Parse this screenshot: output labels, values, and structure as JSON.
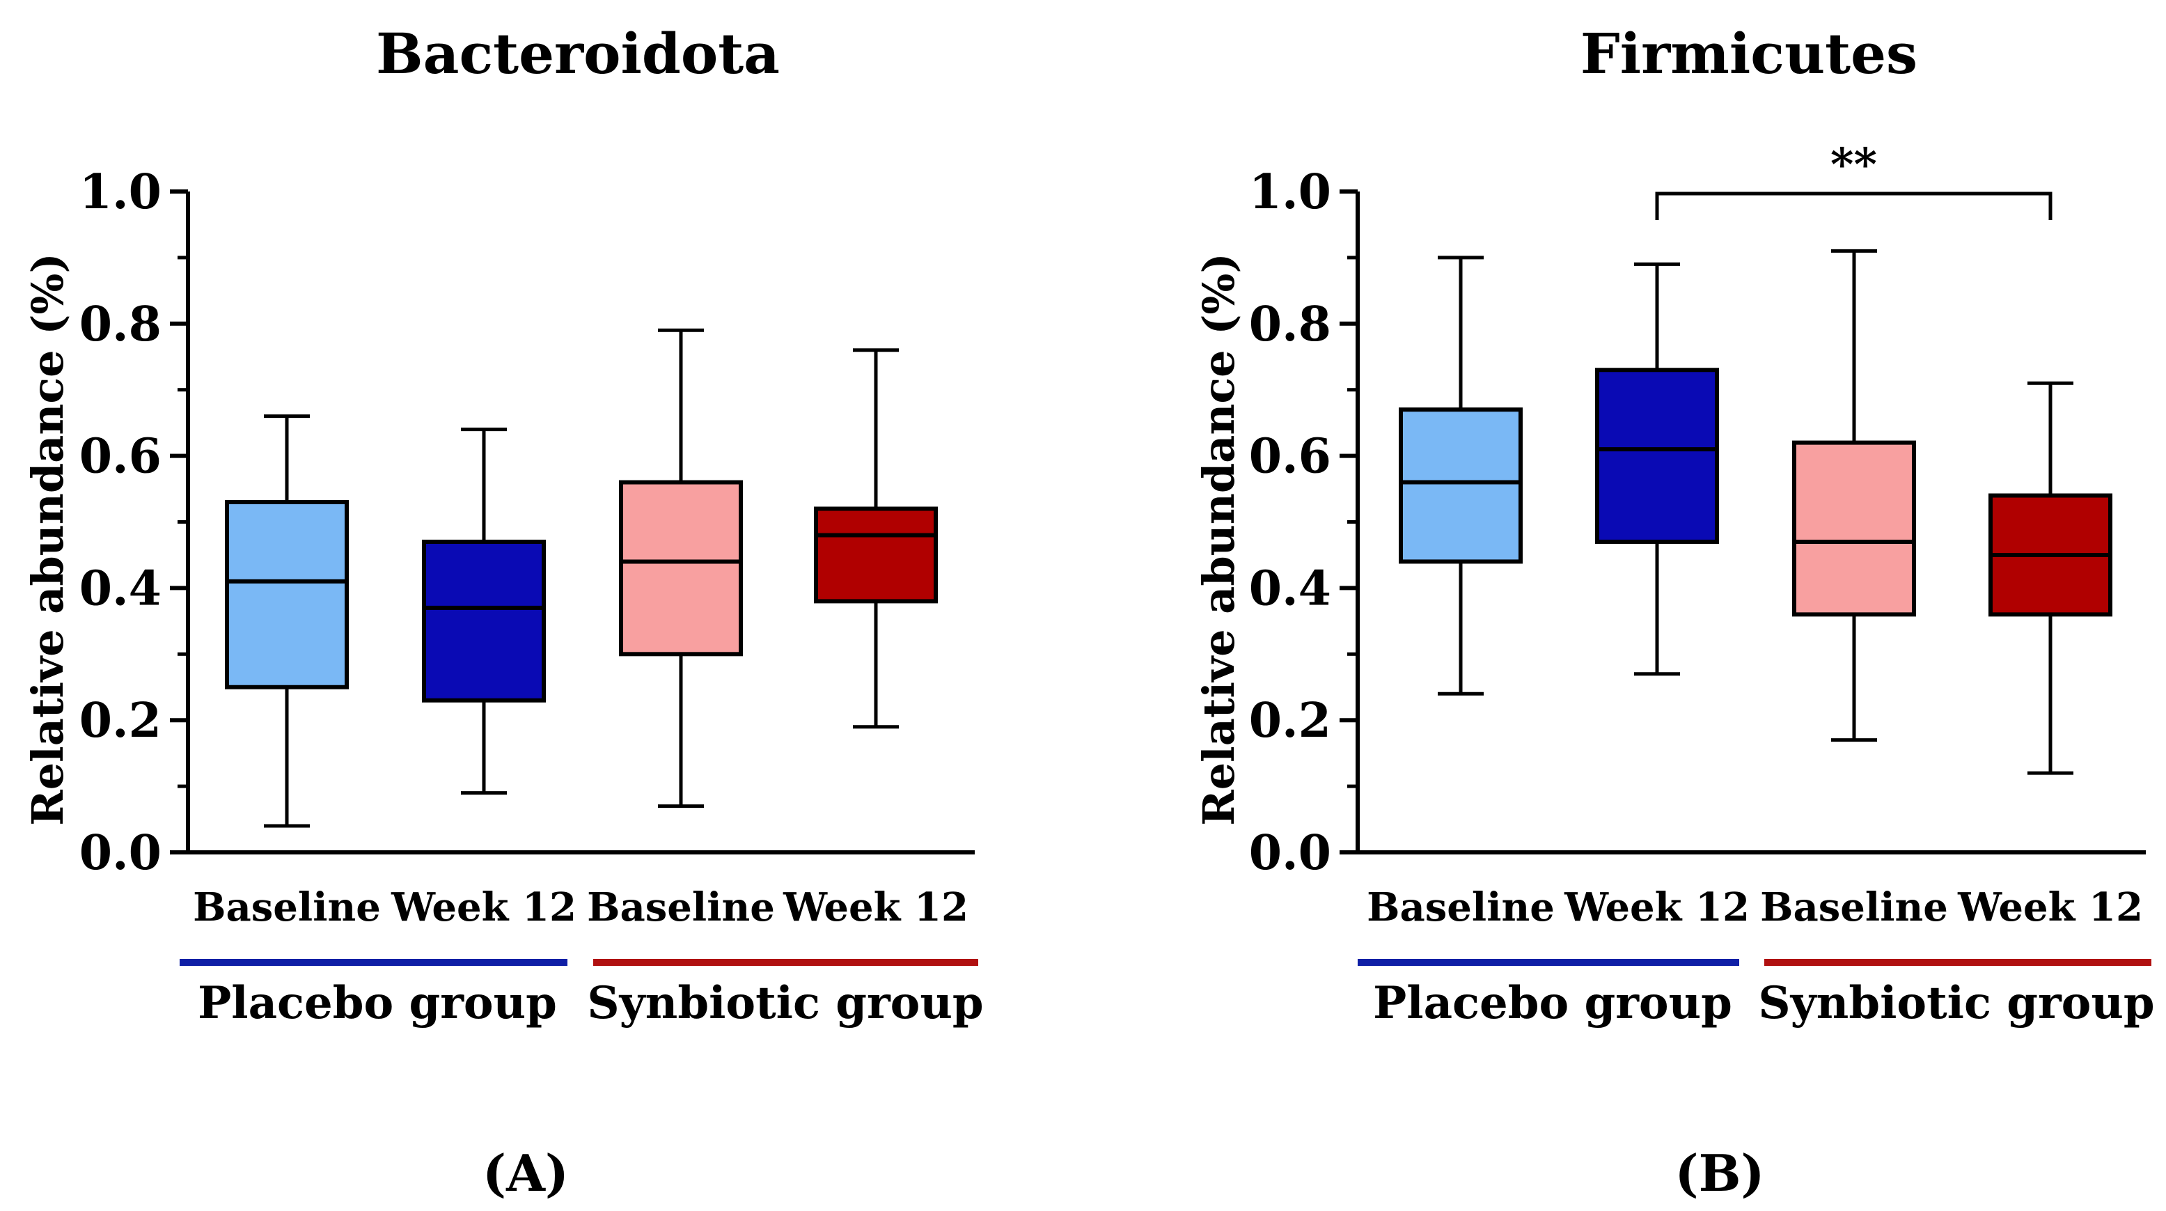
{
  "chart_data": [
    {
      "type": "box",
      "title": "Bacteroidota",
      "panel_label": "(A)",
      "panel_letter": "A",
      "ylabel": "Relative abundance (%)",
      "ylim": [
        0,
        1.0
      ],
      "yticks": [
        "0.0",
        "0.2",
        "0.4",
        "0.6",
        "0.8",
        "1.0"
      ],
      "categories": [
        "Baseline",
        "Week 12",
        "Baseline",
        "Week 12"
      ],
      "groups": [
        {
          "name": "Placebo group",
          "color": "#0f1fa6"
        },
        {
          "name": "Synbiotic group",
          "color": "#b01010"
        }
      ],
      "boxes": [
        {
          "group": "Placebo group",
          "category": "Baseline",
          "min": 0.04,
          "q1": 0.25,
          "median": 0.41,
          "q3": 0.53,
          "max": 0.66,
          "color": "#7ab8f5"
        },
        {
          "group": "Placebo group",
          "category": "Week 12",
          "min": 0.09,
          "q1": 0.23,
          "median": 0.37,
          "q3": 0.47,
          "max": 0.64,
          "color": "#0a0ab4"
        },
        {
          "group": "Synbiotic group",
          "category": "Baseline",
          "min": 0.07,
          "q1": 0.3,
          "median": 0.44,
          "q3": 0.56,
          "max": 0.79,
          "color": "#f8a0a0"
        },
        {
          "group": "Synbiotic group",
          "category": "Week 12",
          "min": 0.19,
          "q1": 0.38,
          "median": 0.48,
          "q3": 0.52,
          "max": 0.76,
          "color": "#b00000"
        }
      ],
      "annotations": []
    },
    {
      "type": "box",
      "title": "Firmicutes",
      "panel_label": "(B)",
      "panel_letter": "B",
      "ylabel": "Relative abundance (%)",
      "ylim": [
        0,
        1.0
      ],
      "yticks": [
        "0.0",
        "0.2",
        "0.4",
        "0.6",
        "0.8",
        "1.0"
      ],
      "categories": [
        "Baseline",
        "Week 12",
        "Baseline",
        "Week 12"
      ],
      "groups": [
        {
          "name": "Placebo group",
          "color": "#0f1fa6"
        },
        {
          "name": "Synbiotic group",
          "color": "#b01010"
        }
      ],
      "boxes": [
        {
          "group": "Placebo group",
          "category": "Baseline",
          "min": 0.24,
          "q1": 0.44,
          "median": 0.56,
          "q3": 0.67,
          "max": 0.9,
          "color": "#7ab8f5"
        },
        {
          "group": "Placebo group",
          "category": "Week 12",
          "min": 0.27,
          "q1": 0.47,
          "median": 0.61,
          "q3": 0.73,
          "max": 0.89,
          "color": "#0a0ab4"
        },
        {
          "group": "Synbiotic group",
          "category": "Baseline",
          "min": 0.17,
          "q1": 0.36,
          "median": 0.47,
          "q3": 0.62,
          "max": 0.91,
          "color": "#f8a0a0"
        },
        {
          "group": "Synbiotic group",
          "category": "Week 12",
          "min": 0.12,
          "q1": 0.36,
          "median": 0.45,
          "q3": 0.54,
          "max": 0.71,
          "color": "#b00000"
        }
      ],
      "annotations": [
        {
          "text": "**",
          "from_index": 1,
          "to_index": 3,
          "y": 1.0
        }
      ]
    }
  ]
}
